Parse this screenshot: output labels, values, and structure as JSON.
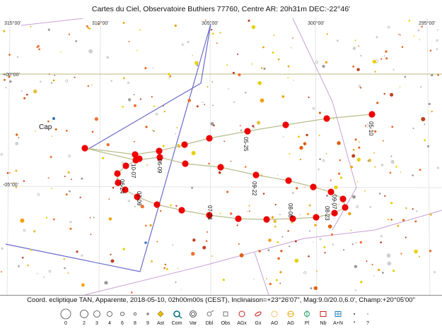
{
  "window": {
    "title": "Cartes du Ciel, Observatoire Buthiers 77760, Centre AR: 20h31m DEC:-22°46'"
  },
  "chart": {
    "ra_labels": [
      "315°00'",
      "310°00'",
      "305°00'",
      "300°00'",
      "295°00'"
    ],
    "dec_labels": [
      "+00°00'",
      "-05°00'"
    ],
    "constellation_label": "Cap",
    "path_dates": [
      "05-10",
      "05-25",
      "06-09",
      "06-24",
      "07-09",
      "07-24",
      "08-08",
      "08-23",
      "09-07",
      "09-22",
      "10-07"
    ]
  },
  "status": {
    "coords": "Coord. ecliptique TAN, Apparente, 2018-05-10, 02h00m00s (CEST), Inclinaison=+23°26'07\", Mag:9.0/20.0,6.0', Champ:+20°05'00\""
  },
  "legend": {
    "items": [
      {
        "label": "0",
        "icon": "circle-mag0-icon"
      },
      {
        "label": "2",
        "icon": "circle-mag2-icon"
      },
      {
        "label": "3",
        "icon": "circle-mag3-icon"
      },
      {
        "label": "4",
        "icon": "circle-mag4-icon"
      },
      {
        "label": "6",
        "icon": "circle-mag6-icon"
      },
      {
        "label": "8",
        "icon": "circle-mag8-icon"
      },
      {
        "label": "9",
        "icon": "circle-mag9-icon"
      },
      {
        "label": "Ast",
        "icon": "asteroid-icon"
      },
      {
        "label": "Com",
        "icon": "comet-icon"
      },
      {
        "label": "Var",
        "icon": "variable-star-icon"
      },
      {
        "label": "Dbl",
        "icon": "double-star-icon"
      },
      {
        "label": "Obs",
        "icon": "observed-icon"
      },
      {
        "label": "AGx",
        "icon": "galaxy-cluster-icon"
      },
      {
        "label": "Gx",
        "icon": "galaxy-icon"
      },
      {
        "label": "AO",
        "icon": "open-cluster-icon"
      },
      {
        "label": "AG",
        "icon": "globular-cluster-icon"
      },
      {
        "label": "Pl",
        "icon": "planetary-nebula-icon"
      },
      {
        "label": "Nb",
        "icon": "nebula-icon"
      },
      {
        "label": "A+N",
        "icon": "cluster-nebula-icon"
      },
      {
        "label": "*",
        "icon": "star-icon"
      },
      {
        "label": "?",
        "icon": "unknown-icon"
      }
    ]
  },
  "colors": {
    "grid": "#e6e6e6",
    "equator": "#c8c89a",
    "boundary": "#c8a0d4",
    "figure": "#6060c0",
    "path": "#b8bf8c",
    "marker": "#ee0000"
  }
}
